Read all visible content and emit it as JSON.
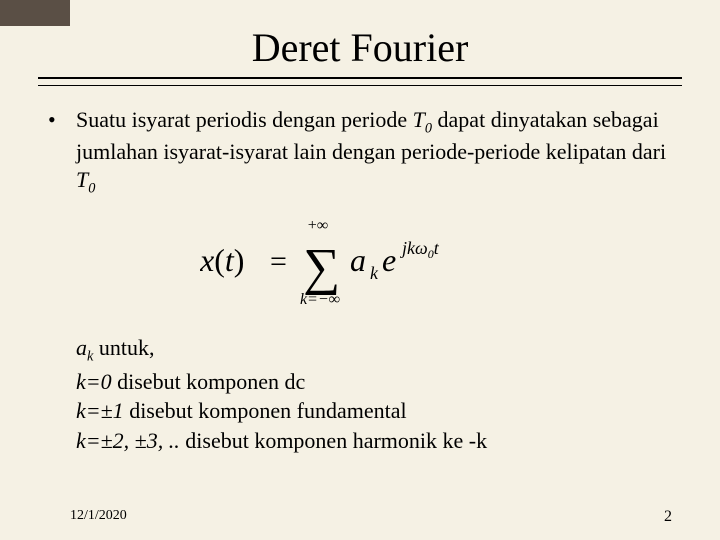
{
  "title": "Deret Fourier",
  "bullet": {
    "marker": "•",
    "pre": "Suatu isyarat periodis dengan periode ",
    "T0_sym": "T",
    "T0_sub": "0",
    "mid": " dapat dinyatakan sebagai jumlahan isyarat-isyarat lain dengan periode-periode kelipatan dari ",
    "T0b_sym": "T",
    "T0b_sub": "0"
  },
  "formula": {
    "lhs": "x(t) =",
    "sum_upper": "+∞",
    "sum_lower": "k=−∞",
    "coef": "a",
    "coef_sub": "k",
    "exp_e": "e",
    "exp_sup": "jkω₀t"
  },
  "coeff": {
    "line1_a": "a",
    "line1_k": "k",
    "line1_rest": " untuk,",
    "line2_k": "k=0",
    "line2_rest": " disebut komponen dc",
    "line3_k": "k=±1",
    "line3_rest": " disebut komponen fundamental",
    "line4_k": "k=±2, ±3, ..",
    "line4_rest": " disebut komponen harmonik ke -k"
  },
  "footer": {
    "date": "12/1/2020",
    "page": "2"
  },
  "colors": {
    "background": "#f5f1e4",
    "text": "#000000",
    "corner": "#5a4f45"
  }
}
